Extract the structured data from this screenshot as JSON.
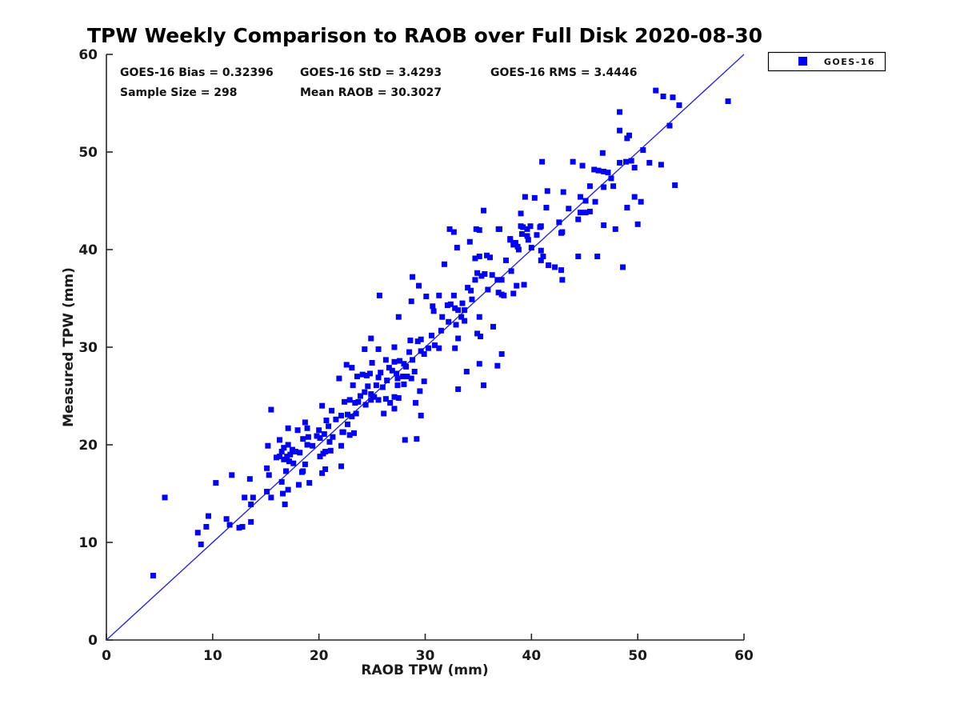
{
  "title": "TPW Weekly Comparison to RAOB over Full Disk 2020-08-30",
  "stats": {
    "items": [
      "GOES-16 Bias = 0.32396",
      "GOES-16 StD = 3.4293",
      "GOES-16 RMS = 3.4446",
      "Sample Size = 298",
      "Mean RAOB = 30.3027"
    ]
  },
  "legend": {
    "label": "GOES-16",
    "marker_color": "#0202ee"
  },
  "chart_data": {
    "type": "scatter",
    "title": "TPW Weekly Comparison to RAOB over Full Disk 2020-08-30",
    "xlabel": "RAOB TPW (mm)",
    "ylabel": "Measured TPW (mm)",
    "xlim": [
      0,
      60
    ],
    "ylim": [
      0,
      60
    ],
    "xticks": [
      0,
      10,
      20,
      30,
      40,
      50,
      60
    ],
    "yticks": [
      0,
      10,
      20,
      30,
      40,
      50,
      60
    ],
    "grid": false,
    "legend_position": "outside-top-right",
    "colors": {
      "marker": "#0202ee",
      "line": "#2a2acc",
      "axis": "#262626"
    },
    "reference_line": {
      "from": [
        0,
        0
      ],
      "to": [
        60,
        60
      ]
    },
    "series": [
      {
        "name": "GOES-16",
        "marker": "square",
        "points": [
          [
            24.9,
            30.9
          ],
          [
            28.6,
            30.7
          ],
          [
            29.3,
            30.6
          ],
          [
            29.6,
            30.8
          ],
          [
            33.1,
            30.9
          ],
          [
            35.2,
            31.1
          ],
          [
            24.3,
            29.8
          ],
          [
            25.6,
            29.8
          ],
          [
            27.1,
            30.0
          ],
          [
            28.5,
            29.5
          ],
          [
            29.6,
            29.6
          ],
          [
            29.9,
            29.3
          ],
          [
            31.3,
            29.9
          ],
          [
            32.8,
            29.9
          ],
          [
            37.2,
            29.3
          ],
          [
            22.6,
            28.2
          ],
          [
            23.1,
            27.9
          ],
          [
            25.0,
            28.4
          ],
          [
            26.3,
            28.7
          ],
          [
            27.1,
            28.5
          ],
          [
            27.6,
            28.6
          ],
          [
            28.0,
            28.3
          ],
          [
            28.8,
            28.7
          ],
          [
            33.9,
            27.5
          ],
          [
            35.1,
            28.3
          ],
          [
            36.8,
            28.1
          ],
          [
            21.9,
            26.8
          ],
          [
            23.6,
            27.0
          ],
          [
            24.1,
            27.2
          ],
          [
            24.5,
            27.1
          ],
          [
            24.8,
            27.3
          ],
          [
            25.6,
            26.9
          ],
          [
            26.4,
            26.6
          ],
          [
            26.9,
            27.6
          ],
          [
            27.4,
            26.8
          ],
          [
            27.9,
            27.0
          ],
          [
            28.3,
            27.0
          ],
          [
            28.7,
            26.8
          ],
          [
            29.0,
            27.5
          ],
          [
            29.9,
            26.5
          ],
          [
            35.5,
            26.1
          ],
          [
            23.2,
            26.1
          ],
          [
            24.6,
            26.0
          ],
          [
            25.4,
            26.1
          ],
          [
            24.3,
            25.4
          ],
          [
            24.9,
            25.2
          ],
          [
            27.4,
            26.1
          ],
          [
            28.0,
            26.2
          ],
          [
            29.5,
            25.5
          ],
          [
            33.1,
            25.7
          ],
          [
            22.9,
            24.6
          ],
          [
            23.4,
            24.3
          ],
          [
            23.7,
            24.4
          ],
          [
            24.9,
            24.6
          ],
          [
            25.2,
            24.9
          ],
          [
            25.6,
            24.6
          ],
          [
            26.3,
            24.7
          ],
          [
            26.7,
            24.3
          ],
          [
            27.1,
            24.9
          ],
          [
            27.5,
            24.8
          ],
          [
            29.1,
            24.3
          ],
          [
            15.5,
            23.6
          ],
          [
            20.3,
            24.0
          ],
          [
            21.2,
            23.5
          ],
          [
            22.1,
            23.0
          ],
          [
            22.7,
            23.1
          ],
          [
            23.1,
            22.9
          ],
          [
            23.5,
            23.2
          ],
          [
            26.1,
            23.2
          ],
          [
            27.1,
            23.7
          ],
          [
            29.6,
            23.0
          ],
          [
            17.1,
            21.7
          ],
          [
            18.0,
            21.5
          ],
          [
            18.7,
            22.3
          ],
          [
            18.9,
            21.7
          ],
          [
            20.7,
            22.5
          ],
          [
            20.9,
            21.9
          ],
          [
            22.3,
            21.3
          ],
          [
            22.7,
            22.1
          ],
          [
            18.5,
            20.6
          ],
          [
            19.0,
            20.8
          ],
          [
            19.8,
            20.9
          ],
          [
            20.1,
            20.7
          ],
          [
            20.5,
            21.1
          ],
          [
            21.3,
            20.8
          ],
          [
            22.2,
            21.3
          ],
          [
            22.9,
            21.0
          ],
          [
            23.3,
            21.2
          ],
          [
            28.1,
            20.5
          ],
          [
            29.2,
            20.6
          ],
          [
            15.2,
            19.9
          ],
          [
            16.7,
            19.7
          ],
          [
            17.1,
            20.0
          ],
          [
            17.5,
            19.5
          ],
          [
            17.8,
            19.3
          ],
          [
            18.9,
            20.0
          ],
          [
            20.6,
            19.3
          ],
          [
            21.1,
            19.4
          ],
          [
            22.1,
            19.9
          ],
          [
            16.0,
            18.7
          ],
          [
            16.3,
            18.8
          ],
          [
            16.7,
            18.5
          ],
          [
            17.0,
            18.8
          ],
          [
            17.2,
            18.3
          ],
          [
            20.1,
            18.8
          ],
          [
            20.4,
            19.1
          ],
          [
            18.7,
            18.0
          ],
          [
            22.1,
            17.8
          ],
          [
            15.1,
            17.6
          ],
          [
            15.3,
            16.9
          ],
          [
            18.4,
            17.2
          ],
          [
            20.3,
            17.1
          ],
          [
            20.6,
            17.5
          ],
          [
            16.5,
            16.2
          ],
          [
            18.1,
            15.9
          ],
          [
            15.5,
            14.6
          ],
          [
            16.6,
            15.0
          ],
          [
            15.1,
            15.2
          ],
          [
            16.8,
            13.9
          ],
          [
            17.1,
            15.4
          ],
          [
            16.3,
            20.5
          ],
          [
            4.4,
            6.6
          ],
          [
            5.5,
            14.6
          ],
          [
            8.6,
            11.0
          ],
          [
            8.9,
            9.8
          ],
          [
            9.4,
            11.6
          ],
          [
            9.6,
            12.7
          ],
          [
            10.3,
            16.1
          ],
          [
            11.3,
            12.4
          ],
          [
            11.6,
            11.8
          ],
          [
            11.8,
            16.9
          ],
          [
            12.5,
            11.5
          ],
          [
            12.8,
            11.6
          ],
          [
            13.0,
            14.6
          ],
          [
            13.5,
            16.5
          ],
          [
            13.6,
            13.9
          ],
          [
            13.6,
            12.1
          ],
          [
            13.8,
            14.6
          ],
          [
            16.5,
            19.3
          ],
          [
            17.3,
            19.0
          ],
          [
            18.5,
            17.3
          ],
          [
            19.1,
            16.1
          ],
          [
            32.3,
            42.1
          ],
          [
            32.7,
            41.8
          ],
          [
            34.8,
            42.1
          ],
          [
            36.9,
            42.1
          ],
          [
            33.0,
            40.2
          ],
          [
            34.2,
            40.8
          ],
          [
            34.7,
            39.1
          ],
          [
            35.1,
            39.3
          ],
          [
            35.8,
            39.4
          ],
          [
            36.1,
            39.2
          ],
          [
            31.8,
            38.5
          ],
          [
            34.9,
            37.6
          ],
          [
            35.3,
            37.3
          ],
          [
            35.6,
            37.5
          ],
          [
            34.7,
            36.9
          ],
          [
            36.8,
            36.9
          ],
          [
            37.2,
            36.9
          ],
          [
            38.1,
            37.8
          ],
          [
            38.3,
            35.5
          ],
          [
            37.2,
            35.4
          ],
          [
            36.9,
            35.6
          ],
          [
            37.4,
            35.3
          ],
          [
            38.6,
            36.3
          ],
          [
            39.3,
            36.4
          ],
          [
            39.2,
            42.3
          ],
          [
            39.6,
            42.1
          ],
          [
            38.0,
            41.0
          ],
          [
            38.5,
            40.7
          ],
          [
            38.8,
            40.0
          ],
          [
            40.0,
            40.2
          ],
          [
            40.8,
            42.3
          ],
          [
            40.9,
            39.9
          ],
          [
            41.1,
            39.3
          ],
          [
            40.9,
            38.9
          ],
          [
            41.6,
            38.4
          ],
          [
            42.2,
            38.2
          ],
          [
            42.8,
            41.7
          ],
          [
            42.9,
            36.9
          ],
          [
            28.8,
            37.2
          ],
          [
            29.4,
            36.3
          ],
          [
            25.7,
            35.3
          ],
          [
            30.1,
            35.2
          ],
          [
            28.7,
            34.7
          ],
          [
            31.3,
            35.3
          ],
          [
            32.7,
            35.3
          ],
          [
            34.0,
            36.1
          ],
          [
            34.3,
            35.8
          ],
          [
            27.5,
            33.1
          ],
          [
            31.6,
            33.1
          ],
          [
            30.7,
            34.2
          ],
          [
            30.8,
            33.7
          ],
          [
            32.4,
            34.4
          ],
          [
            32.8,
            34.0
          ],
          [
            33.1,
            33.8
          ],
          [
            33.7,
            33.8
          ],
          [
            32.1,
            34.3
          ],
          [
            33.4,
            33.1
          ],
          [
            33.7,
            32.7
          ],
          [
            32.9,
            32.3
          ],
          [
            35.1,
            33.1
          ],
          [
            36.4,
            32.1
          ],
          [
            34.9,
            31.4
          ],
          [
            30.6,
            31.2
          ],
          [
            42.8,
            37.9
          ],
          [
            49.0,
            51.4
          ],
          [
            46.7,
            49.9
          ],
          [
            41.0,
            49.0
          ],
          [
            43.9,
            49.0
          ],
          [
            44.8,
            48.6
          ],
          [
            45.9,
            48.2
          ],
          [
            46.3,
            48.1
          ],
          [
            46.8,
            48.0
          ],
          [
            47.2,
            47.9
          ],
          [
            48.3,
            48.9
          ],
          [
            48.9,
            49.0
          ],
          [
            49.4,
            49.1
          ],
          [
            49.7,
            48.4
          ],
          [
            51.1,
            48.9
          ],
          [
            52.2,
            48.7
          ],
          [
            53.5,
            46.6
          ],
          [
            46.8,
            46.4
          ],
          [
            47.7,
            46.5
          ],
          [
            41.5,
            46.0
          ],
          [
            43.0,
            45.9
          ],
          [
            39.4,
            45.4
          ],
          [
            40.3,
            45.3
          ],
          [
            44.6,
            45.4
          ],
          [
            45.1,
            45.0
          ],
          [
            46.0,
            44.9
          ],
          [
            49.7,
            45.4
          ],
          [
            50.3,
            44.9
          ],
          [
            49.0,
            44.3
          ],
          [
            35.5,
            44.0
          ],
          [
            39.0,
            43.7
          ],
          [
            41.4,
            44.3
          ],
          [
            44.6,
            43.8
          ],
          [
            45.1,
            43.8
          ],
          [
            45.5,
            43.9
          ],
          [
            39.9,
            42.4
          ],
          [
            40.9,
            42.4
          ],
          [
            42.6,
            42.8
          ],
          [
            42.9,
            41.8
          ],
          [
            44.4,
            43.1
          ],
          [
            46.8,
            42.5
          ],
          [
            47.9,
            42.1
          ],
          [
            50.0,
            42.6
          ],
          [
            35.1,
            42.0
          ],
          [
            37.0,
            42.1
          ],
          [
            38.0,
            41.1
          ],
          [
            39.0,
            42.4
          ],
          [
            39.1,
            41.6
          ],
          [
            39.6,
            41.4
          ],
          [
            39.7,
            41.0
          ],
          [
            38.3,
            40.5
          ],
          [
            38.7,
            40.3
          ],
          [
            51.7,
            56.3
          ],
          [
            52.4,
            55.7
          ],
          [
            53.3,
            55.6
          ],
          [
            53.9,
            54.8
          ],
          [
            58.5,
            55.2
          ],
          [
            48.3,
            54.1
          ],
          [
            48.3,
            52.2
          ],
          [
            49.2,
            51.7
          ],
          [
            53.0,
            52.7
          ],
          [
            44.4,
            39.3
          ],
          [
            46.2,
            39.3
          ],
          [
            48.6,
            38.2
          ],
          [
            26.6,
            27.9
          ],
          [
            27.3,
            27.3
          ],
          [
            28.2,
            28.0
          ],
          [
            26.0,
            25.9
          ],
          [
            25.8,
            27.4
          ],
          [
            24.4,
            24.1
          ],
          [
            23.9,
            25.0
          ],
          [
            22.4,
            24.4
          ],
          [
            21.6,
            22.6
          ],
          [
            19.4,
            19.9
          ],
          [
            18.2,
            19.2
          ],
          [
            17.6,
            18.1
          ],
          [
            16.9,
            17.3
          ],
          [
            20.0,
            21.5
          ],
          [
            21.0,
            20.3
          ],
          [
            30.3,
            29.9
          ],
          [
            30.9,
            30.2
          ],
          [
            31.5,
            31.7
          ],
          [
            32.2,
            32.6
          ],
          [
            33.5,
            34.5
          ],
          [
            34.4,
            34.9
          ],
          [
            35.9,
            35.9
          ],
          [
            36.3,
            37.4
          ],
          [
            37.6,
            38.9
          ],
          [
            40.5,
            41.5
          ],
          [
            43.5,
            44.2
          ],
          [
            45.5,
            46.5
          ],
          [
            47.5,
            47.3
          ],
          [
            50.5,
            50.2
          ]
        ]
      }
    ]
  }
}
